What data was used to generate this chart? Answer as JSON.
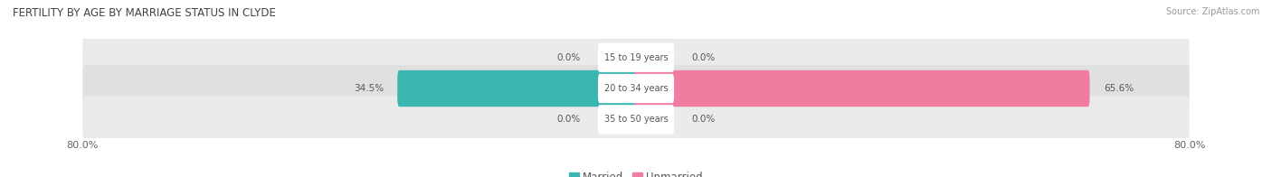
{
  "title": "FERTILITY BY AGE BY MARRIAGE STATUS IN CLYDE",
  "source": "Source: ZipAtlas.com",
  "categories": [
    "15 to 19 years",
    "20 to 34 years",
    "35 to 50 years"
  ],
  "married_values": [
    0.0,
    34.5,
    0.0
  ],
  "unmarried_values": [
    0.0,
    65.6,
    0.0
  ],
  "married_color": "#3ab5b0",
  "unmarried_color": "#f07ca0",
  "row_bg_color": "#ebebeb",
  "row_bg_color_alt": "#e0e0e0",
  "x_max": 80.0,
  "title_fontsize": 8.5,
  "label_fontsize": 7.0,
  "value_fontsize": 7.5,
  "tick_fontsize": 8.0,
  "source_fontsize": 7.0,
  "legend_fontsize": 8.5
}
